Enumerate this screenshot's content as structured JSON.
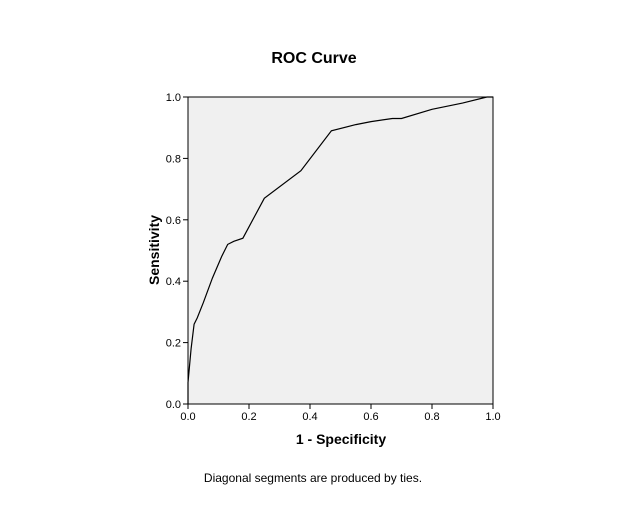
{
  "chart_data": {
    "type": "line",
    "title": "ROC Curve",
    "xlabel": "1 - Specificity",
    "ylabel": "Sensitivity",
    "footnote": "Diagonal segments are produced by ties.",
    "xlim": [
      0.0,
      1.0
    ],
    "ylim": [
      0.0,
      1.0
    ],
    "xticks": [
      "0.0",
      "0.2",
      "0.4",
      "0.6",
      "0.8",
      "1.0"
    ],
    "yticks": [
      "0.0",
      "0.2",
      "0.4",
      "0.6",
      "0.8",
      "1.0"
    ],
    "grid": false,
    "plot_background": "#f0f0f0",
    "line_color": "#000000",
    "series": [
      {
        "x": [
          0.0,
          0.0,
          0.01,
          0.02,
          0.03,
          0.05,
          0.08,
          0.11,
          0.13,
          0.15,
          0.18,
          0.25,
          0.37,
          0.47,
          0.55,
          0.6,
          0.67,
          0.7,
          0.8,
          0.9,
          0.98,
          1.0
        ],
        "y": [
          0.0,
          0.07,
          0.18,
          0.26,
          0.28,
          0.33,
          0.41,
          0.48,
          0.52,
          0.53,
          0.54,
          0.67,
          0.76,
          0.89,
          0.91,
          0.92,
          0.93,
          0.93,
          0.96,
          0.98,
          1.0,
          1.0
        ]
      }
    ]
  }
}
